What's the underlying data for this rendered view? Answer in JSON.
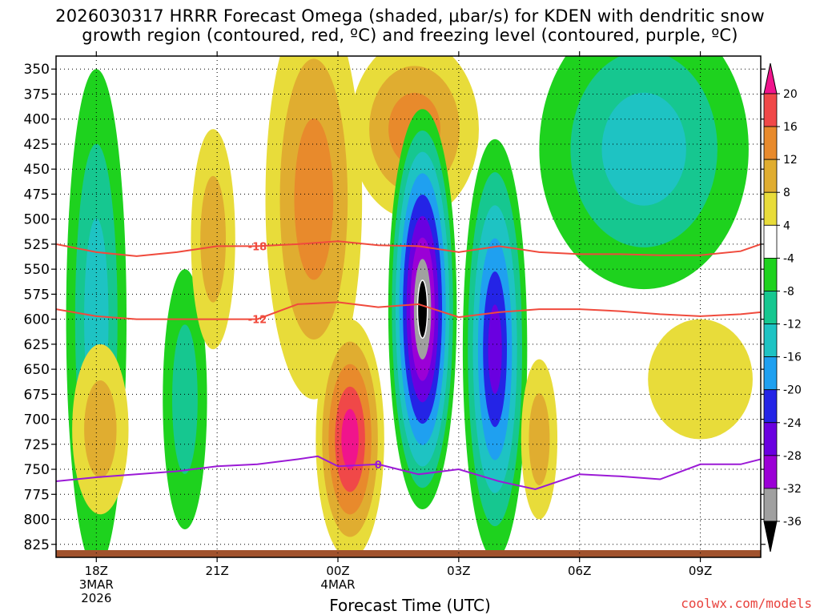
{
  "header": {
    "title_line1": "2026030317 HRRR Forecast Omega (shaded, μbar/s) for KDEN with dendritic snow",
    "title_line2": "growth region (contoured, red, ºC) and freezing level (contoured, purple, ºC)"
  },
  "footer": {
    "xlabel": "Forecast Time (UTC)",
    "credit": "coolwx.com/models"
  },
  "colors": {
    "omega_neg": [
      "#000000",
      "#a0a0a0",
      "#9b00d6",
      "#6a00e0",
      "#2424e6",
      "#1fa0f0",
      "#1ec3c3",
      "#16c790",
      "#1ed21e"
    ],
    "omega_pos": [
      "#e8dc3a",
      "#e0ad30",
      "#e88a2c",
      "#f04848",
      "#f0148c"
    ],
    "dgz_contour": "#f04a3c",
    "freezing_contour": "#9b1ad6",
    "ground": "#a0522d"
  },
  "chart_data": {
    "type": "heatmap",
    "x_ticks": [
      {
        "hour": 0,
        "label": "18Z",
        "date1": "3MAR",
        "date2": "2026"
      },
      {
        "hour": 3,
        "label": "21Z",
        "date1": "",
        "date2": ""
      },
      {
        "hour": 6,
        "label": "00Z",
        "date1": "4MAR",
        "date2": ""
      },
      {
        "hour": 9,
        "label": "03Z",
        "date1": "",
        "date2": ""
      },
      {
        "hour": 12,
        "label": "06Z",
        "date1": "",
        "date2": ""
      },
      {
        "hour": 15,
        "label": "09Z",
        "date1": "",
        "date2": ""
      }
    ],
    "xlim_hours": [
      -1,
      16.5
    ],
    "y_ticks": [
      350,
      375,
      400,
      425,
      450,
      475,
      500,
      525,
      550,
      575,
      600,
      625,
      650,
      675,
      700,
      725,
      750,
      775,
      800,
      825
    ],
    "ylim": [
      337,
      838
    ],
    "colorbar": {
      "levels": [
        20,
        16,
        12,
        8,
        4,
        -4,
        -8,
        -12,
        -16,
        -20,
        -24,
        -28,
        -32,
        -36
      ],
      "colors_top_to_bottom": [
        "#f0148c",
        "#f04848",
        "#e88a2c",
        "#e0ad30",
        "#e8dc3a",
        "#ffffff",
        "#1ed21e",
        "#16c790",
        "#1ec3c3",
        "#1fa0f0",
        "#2424e6",
        "#6a00e0",
        "#9b00d6",
        "#a0a0a0",
        "#000000"
      ]
    },
    "omega_features": [
      {
        "hour": 0.0,
        "p": 600,
        "rx": 0.75,
        "ry": 250,
        "levels": [
          -4,
          -8,
          -12
        ]
      },
      {
        "hour": 2.2,
        "p": 680,
        "rx": 0.55,
        "ry": 130,
        "levels": [
          -4,
          -8
        ]
      },
      {
        "hour": 0.1,
        "p": 710,
        "rx": 0.7,
        "ry": 85,
        "levels": [
          4,
          8
        ]
      },
      {
        "hour": 2.9,
        "p": 520,
        "rx": 0.55,
        "ry": 110,
        "levels": [
          4,
          8
        ]
      },
      {
        "hour": 5.4,
        "p": 480,
        "rx": 1.2,
        "ry": 200,
        "levels": [
          4,
          8,
          12
        ]
      },
      {
        "hour": 6.3,
        "p": 720,
        "rx": 0.85,
        "ry": 120,
        "levels": [
          4,
          8,
          12,
          16,
          20
        ]
      },
      {
        "hour": 7.9,
        "p": 410,
        "rx": 1.6,
        "ry": 90,
        "levels": [
          4,
          8,
          12
        ]
      },
      {
        "hour": 8.1,
        "p": 590,
        "rx": 0.85,
        "ry": 200,
        "levels": [
          -4,
          -8,
          -12,
          -16,
          -20,
          -24,
          -28,
          -32,
          -36
        ]
      },
      {
        "hour": 9.9,
        "p": 630,
        "rx": 0.8,
        "ry": 210,
        "levels": [
          -4,
          -8,
          -12,
          -16,
          -20,
          -24
        ]
      },
      {
        "hour": 11.0,
        "p": 720,
        "rx": 0.45,
        "ry": 80,
        "levels": [
          4,
          8
        ]
      },
      {
        "hour": 13.6,
        "p": 430,
        "rx": 2.6,
        "ry": 140,
        "levels": [
          -4,
          -8,
          -12
        ]
      },
      {
        "hour": 15.0,
        "p": 660,
        "rx": 1.3,
        "ry": 60,
        "levels": [
          4
        ]
      }
    ],
    "dgz_contours": [
      {
        "label": "-18",
        "label_hour": 4.0,
        "points": [
          [
            -1,
            525
          ],
          [
            0,
            533
          ],
          [
            1,
            537
          ],
          [
            2,
            533
          ],
          [
            3,
            527
          ],
          [
            4,
            527
          ],
          [
            5,
            525
          ],
          [
            6,
            522
          ],
          [
            7,
            526
          ],
          [
            8,
            527
          ],
          [
            9,
            533
          ],
          [
            10,
            527
          ],
          [
            11,
            533
          ],
          [
            12,
            535
          ],
          [
            13,
            535
          ],
          [
            14,
            536
          ],
          [
            15,
            536
          ],
          [
            16,
            532
          ],
          [
            16.5,
            525
          ]
        ]
      },
      {
        "label": "-12",
        "label_hour": 4.0,
        "points": [
          [
            -1,
            590
          ],
          [
            0,
            597
          ],
          [
            1,
            600
          ],
          [
            2,
            600
          ],
          [
            3,
            600
          ],
          [
            4,
            600
          ],
          [
            5,
            585
          ],
          [
            6,
            583
          ],
          [
            7,
            588
          ],
          [
            8,
            585
          ],
          [
            9,
            598
          ],
          [
            10,
            593
          ],
          [
            11,
            590
          ],
          [
            12,
            590
          ],
          [
            13,
            592
          ],
          [
            14,
            595
          ],
          [
            15,
            597
          ],
          [
            16,
            595
          ],
          [
            16.5,
            593
          ]
        ]
      }
    ],
    "freezing_contours": [
      {
        "label": "0",
        "label_hour": 7.0,
        "points": [
          [
            -1,
            762
          ],
          [
            0,
            758
          ],
          [
            1,
            755
          ],
          [
            2,
            752
          ],
          [
            3,
            747
          ],
          [
            4,
            745
          ],
          [
            5,
            740
          ],
          [
            5.5,
            737
          ],
          [
            6,
            747
          ],
          [
            7,
            745
          ],
          [
            8,
            755
          ],
          [
            9,
            750
          ],
          [
            10,
            762
          ],
          [
            10.9,
            770
          ],
          [
            12,
            755
          ],
          [
            13,
            757
          ],
          [
            14,
            760
          ],
          [
            15,
            745
          ],
          [
            16,
            745
          ],
          [
            16.5,
            740
          ]
        ]
      }
    ]
  }
}
